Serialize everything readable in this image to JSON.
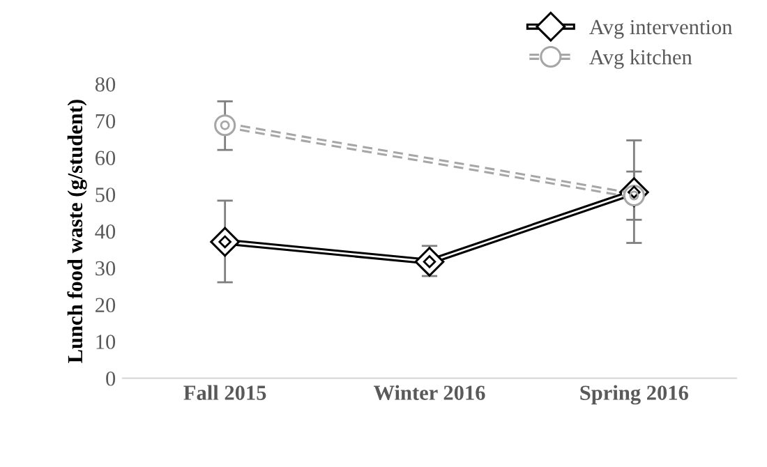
{
  "chart_data": {
    "type": "line",
    "ylabel": "Lunch food waste (g/student)",
    "categories": [
      "Fall 2015",
      "Winter 2016",
      "Spring 2016"
    ],
    "series": [
      {
        "name": "Avg intervention",
        "color": "#000000",
        "marker": "diamond",
        "line_style": "solid",
        "values": [
          37.1,
          31.7,
          50.6
        ],
        "errors": [
          [
            26.1,
            48.3
          ],
          [
            27.8,
            36.0
          ],
          [
            43.1,
            56.2
          ]
        ]
      },
      {
        "name": "Avg kitchen",
        "color": "#a6a6a6",
        "marker": "circle",
        "line_style": "dashed",
        "values": [
          68.8,
          null,
          49.7
        ],
        "errors": [
          [
            62.1,
            75.3
          ],
          null,
          [
            36.8,
            64.7
          ]
        ]
      }
    ],
    "ylim": [
      0,
      80
    ],
    "yticks": [
      0,
      10,
      20,
      30,
      40,
      50,
      60,
      70,
      80
    ],
    "grid": false,
    "legend": "top right"
  }
}
